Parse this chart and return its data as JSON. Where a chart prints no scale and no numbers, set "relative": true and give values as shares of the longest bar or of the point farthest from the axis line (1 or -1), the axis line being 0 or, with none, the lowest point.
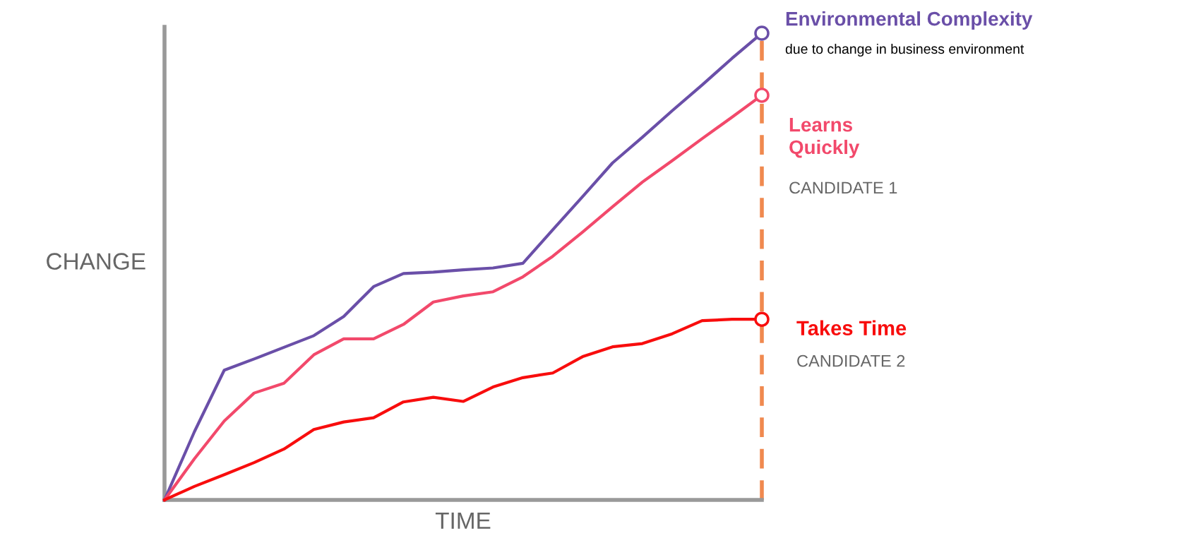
{
  "chart_data": {
    "type": "line",
    "relative": true,
    "xlabel": "TIME",
    "ylabel": "CHANGE",
    "categories": [
      null,
      null,
      null,
      null,
      null,
      null,
      null,
      null,
      null,
      null,
      null,
      null,
      null,
      null,
      null,
      null,
      null,
      null,
      null,
      null,
      null
    ],
    "series": [
      {
        "name": "Environmental Complexity",
        "color": "#6a4fa8",
        "values": [
          0,
          0.146,
          0.278,
          0.302,
          0.327,
          0.352,
          0.393,
          0.457,
          0.485,
          0.488,
          0.493,
          0.497,
          0.507,
          0.579,
          0.65,
          0.722,
          0.777,
          0.834,
          0.889,
          0.946,
          1
        ]
      },
      {
        "name": "Learns\nQuickly",
        "color": "#f2496b",
        "values": [
          0,
          0.088,
          0.169,
          0.229,
          0.25,
          0.311,
          0.345,
          0.345,
          0.376,
          0.424,
          0.437,
          0.446,
          0.478,
          0.522,
          0.574,
          0.628,
          0.681,
          0.727,
          0.774,
          0.82,
          0.867
        ]
      },
      {
        "name": "Takes Time",
        "color": "#f80d0d",
        "values": [
          0,
          0.029,
          0.054,
          0.08,
          0.109,
          0.151,
          0.167,
          0.176,
          0.21,
          0.22,
          0.211,
          0.242,
          0.262,
          0.272,
          0.307,
          0.328,
          0.335,
          0.356,
          0.384,
          0.387,
          0.387
        ]
      }
    ],
    "annotations": [
      "due to change in business environment",
      "CANDIDATE 1",
      "CANDIDATE 2"
    ],
    "line_style": "solid"
  }
}
